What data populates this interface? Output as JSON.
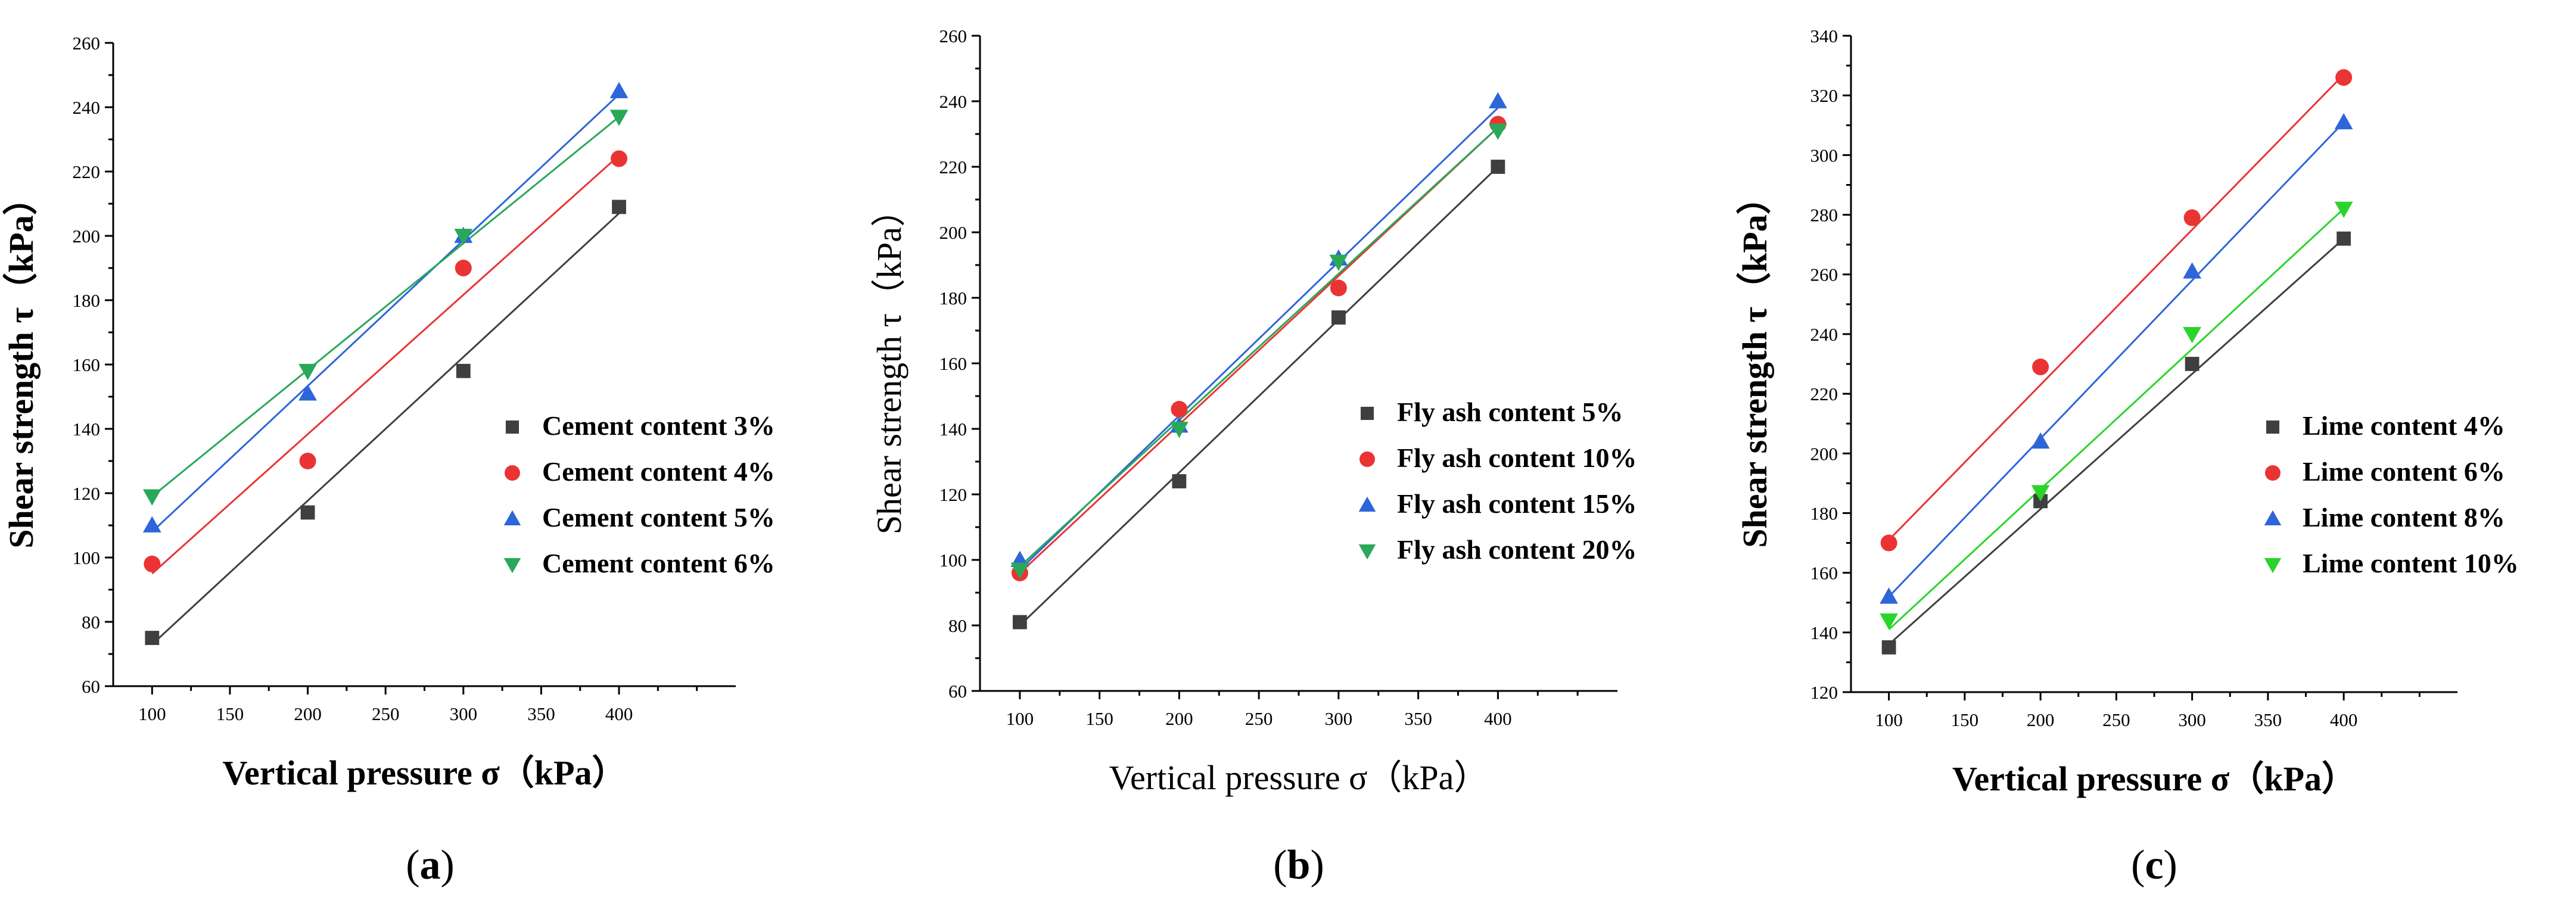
{
  "chart_data": [
    {
      "type": "scatter",
      "panel_label": "a",
      "xlabel": "Vertical pressure σ（kPa）",
      "ylabel": "Shear strength τ（kPa）",
      "xlim": [
        75,
        475
      ],
      "ylim": [
        60,
        260
      ],
      "xticks": [
        100,
        150,
        200,
        250,
        300,
        350,
        400
      ],
      "yticks": [
        60,
        80,
        100,
        120,
        140,
        160,
        180,
        200,
        220,
        240,
        260
      ],
      "fit_lines": true,
      "legend_position": "center-right",
      "x": [
        100,
        200,
        300,
        400
      ],
      "series": [
        {
          "name": "Cement content 3%",
          "values": [
            75,
            114,
            158,
            209
          ],
          "color": "#3f3f3f",
          "marker": "square",
          "fit": [
            73,
            207
          ]
        },
        {
          "name": "Cement content 4%",
          "values": [
            98,
            130,
            190,
            224
          ],
          "color": "#ea3434",
          "marker": "circle",
          "fit": [
            95,
            225
          ]
        },
        {
          "name": "Cement content 5%",
          "values": [
            110,
            151,
            200,
            245
          ],
          "color": "#2e66d9",
          "marker": "triangle-up",
          "fit": [
            108,
            244
          ]
        },
        {
          "name": "Cement content 6%",
          "values": [
            119,
            158,
            200,
            237
          ],
          "color": "#2aa85a",
          "marker": "triangle-down",
          "fit": [
            119,
            237
          ]
        }
      ]
    },
    {
      "type": "scatter",
      "panel_label": "b",
      "xlabel": "Vertical pressure σ（kPa）",
      "ylabel": "Shear strength τ（kPa）",
      "xlim": [
        75,
        475
      ],
      "ylim": [
        60,
        260
      ],
      "xticks": [
        100,
        150,
        200,
        250,
        300,
        350,
        400
      ],
      "yticks": [
        60,
        80,
        100,
        120,
        140,
        160,
        180,
        200,
        220,
        240,
        260
      ],
      "fit_lines": true,
      "legend_position": "center-right",
      "x": [
        100,
        200,
        300,
        400
      ],
      "series": [
        {
          "name": "Fly ash content 5%",
          "values": [
            81,
            124,
            174,
            220
          ],
          "color": "#3f3f3f",
          "marker": "square",
          "fit": [
            80,
            220
          ]
        },
        {
          "name": "Fly ash content 10%",
          "values": [
            96,
            146,
            183,
            233
          ],
          "color": "#ea3434",
          "marker": "circle",
          "fit": [
            96,
            232
          ]
        },
        {
          "name": "Fly ash content 15%",
          "values": [
            100,
            141,
            192,
            240
          ],
          "color": "#2e66d9",
          "marker": "triangle-up",
          "fit": [
            97,
            238
          ]
        },
        {
          "name": "Fly ash content 20%",
          "values": [
            97,
            140,
            191,
            231
          ],
          "color": "#2aa85a",
          "marker": "triangle-down",
          "fit": [
            98,
            232
          ]
        }
      ]
    },
    {
      "type": "scatter",
      "panel_label": "c",
      "xlabel": "Vertical pressure σ（kPa）",
      "ylabel": "Shear strength τ（kPa）",
      "xlim": [
        75,
        475
      ],
      "ylim": [
        120,
        340
      ],
      "xticks": [
        100,
        150,
        200,
        250,
        300,
        350,
        400
      ],
      "yticks": [
        120,
        140,
        160,
        180,
        200,
        220,
        240,
        260,
        280,
        300,
        320,
        340
      ],
      "fit_lines": true,
      "legend_position": "center-right",
      "x": [
        100,
        200,
        300,
        400
      ],
      "series": [
        {
          "name": "Lime content 4%",
          "values": [
            135,
            184,
            230,
            272
          ],
          "color": "#3f3f3f",
          "marker": "square",
          "fit": [
            136,
            272
          ]
        },
        {
          "name": "Lime content 6%",
          "values": [
            170,
            229,
            279,
            326
          ],
          "color": "#ea3434",
          "marker": "circle",
          "fit": [
            171,
            327
          ]
        },
        {
          "name": "Lime content 8%",
          "values": [
            152,
            204,
            261,
            311
          ],
          "color": "#2e66d9",
          "marker": "triangle-up",
          "fit": [
            152,
            311
          ]
        },
        {
          "name": "Lime content 10%",
          "values": [
            144,
            187,
            240,
            282
          ],
          "color": "#2bd42b",
          "marker": "triangle-down",
          "fit": [
            141,
            282
          ]
        }
      ]
    }
  ]
}
